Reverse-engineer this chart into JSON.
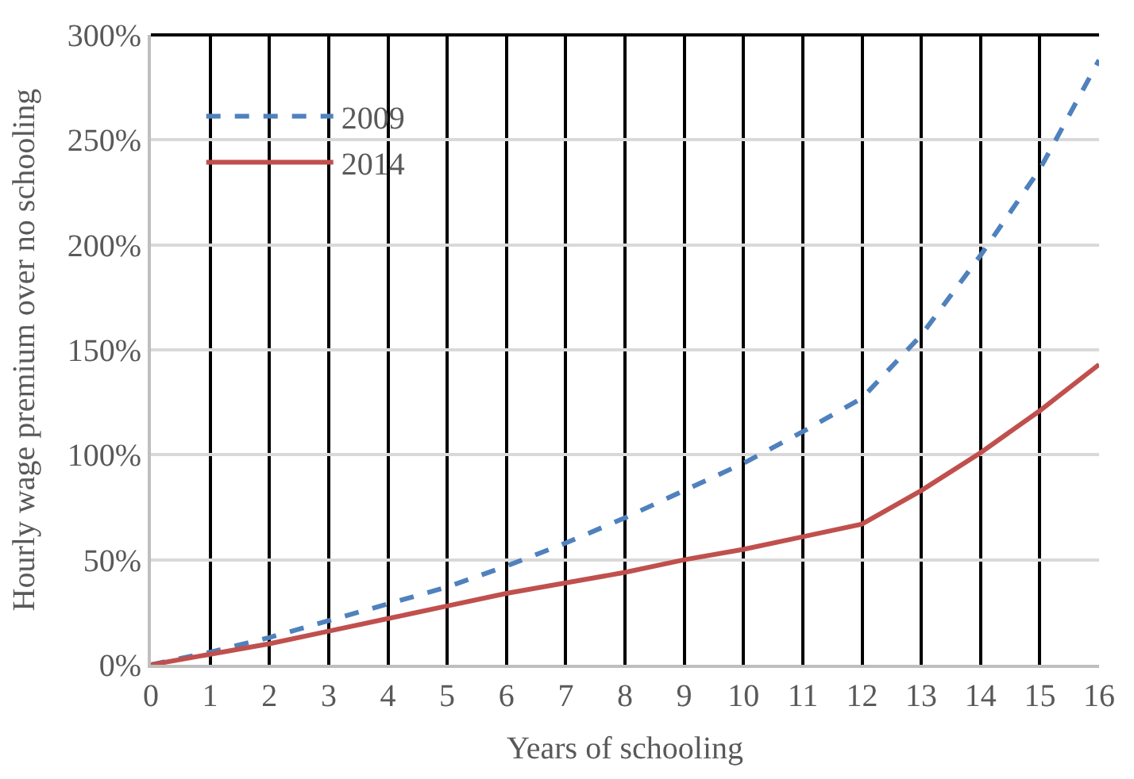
{
  "chart_data": {
    "type": "line",
    "xlabel": "Years of schooling",
    "ylabel": "Hourly wage premium over no schooling",
    "x": [
      0,
      1,
      2,
      3,
      4,
      5,
      6,
      7,
      8,
      9,
      10,
      11,
      12,
      13,
      14,
      15,
      16
    ],
    "series": [
      {
        "name": "2009",
        "color": "#4f81bd",
        "line_style": "dashed",
        "values": [
          0,
          6,
          13,
          21,
          29,
          37,
          47,
          58,
          70,
          83,
          96,
          111,
          127,
          157,
          195,
          236,
          288
        ]
      },
      {
        "name": "2014",
        "color": "#c0504d",
        "line_style": "solid",
        "values": [
          0,
          5,
          10,
          16,
          22,
          28,
          34,
          39,
          44,
          50,
          55,
          61,
          67,
          83,
          101,
          121,
          143
        ]
      }
    ],
    "xlim": [
      0,
      16
    ],
    "xticks": [
      0,
      1,
      2,
      3,
      4,
      5,
      6,
      7,
      8,
      9,
      10,
      11,
      12,
      13,
      14,
      15,
      16
    ],
    "ylim": [
      0,
      300
    ],
    "yticks": [
      {
        "value": 0,
        "label": "0%"
      },
      {
        "value": 50,
        "label": "50%"
      },
      {
        "value": 100,
        "label": "100%"
      },
      {
        "value": 150,
        "label": "150%"
      },
      {
        "value": 200,
        "label": "200%"
      },
      {
        "value": 250,
        "label": "250%"
      },
      {
        "value": 300,
        "label": "300%"
      }
    ],
    "grid": true,
    "legend": "top left",
    "marker": "none"
  }
}
